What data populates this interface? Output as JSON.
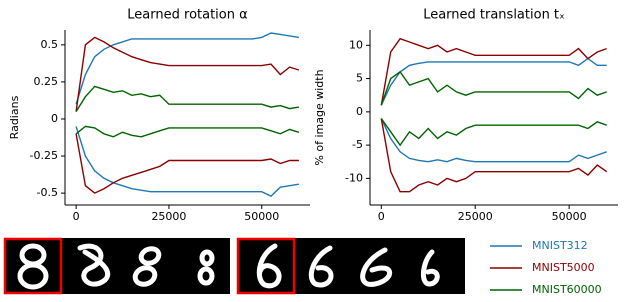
{
  "chart_data": [
    {
      "type": "line",
      "title": "Learned rotation α",
      "y_label": "Radians",
      "x": [
        0,
        2500,
        5000,
        7500,
        10000,
        12500,
        15000,
        17500,
        20000,
        22500,
        25000,
        27500,
        30000,
        32500,
        35000,
        37500,
        40000,
        42500,
        45000,
        47500,
        50000,
        52500,
        55000,
        57500,
        60000
      ],
      "xlim": [
        -3000,
        63000
      ],
      "xticks": [
        0,
        25000,
        50000
      ],
      "ylim": [
        -0.58,
        0.6
      ],
      "yticks": [
        0.5,
        0.25,
        0,
        -0.25,
        -0.5
      ],
      "series": [
        {
          "name": "MNIST312",
          "color": "#1f77b4",
          "upper": [
            0.1,
            0.3,
            0.42,
            0.47,
            0.5,
            0.52,
            0.54,
            0.54,
            0.54,
            0.54,
            0.54,
            0.54,
            0.54,
            0.54,
            0.54,
            0.54,
            0.54,
            0.54,
            0.54,
            0.54,
            0.55,
            0.58,
            0.57,
            0.56,
            0.55
          ],
          "lower": [
            -0.05,
            -0.25,
            -0.35,
            -0.4,
            -0.43,
            -0.45,
            -0.47,
            -0.48,
            -0.49,
            -0.49,
            -0.49,
            -0.49,
            -0.49,
            -0.49,
            -0.49,
            -0.49,
            -0.49,
            -0.49,
            -0.49,
            -0.49,
            -0.49,
            -0.52,
            -0.46,
            -0.45,
            -0.44
          ]
        },
        {
          "name": "MNIST5000",
          "color": "#8b0000",
          "upper": [
            0.05,
            0.5,
            0.55,
            0.52,
            0.48,
            0.45,
            0.42,
            0.4,
            0.38,
            0.37,
            0.36,
            0.36,
            0.36,
            0.36,
            0.36,
            0.36,
            0.36,
            0.36,
            0.36,
            0.36,
            0.36,
            0.37,
            0.3,
            0.35,
            0.33
          ],
          "lower": [
            -0.1,
            -0.45,
            -0.5,
            -0.47,
            -0.43,
            -0.4,
            -0.38,
            -0.36,
            -0.34,
            -0.32,
            -0.28,
            -0.28,
            -0.28,
            -0.28,
            -0.28,
            -0.28,
            -0.28,
            -0.28,
            -0.28,
            -0.28,
            -0.28,
            -0.27,
            -0.3,
            -0.28,
            -0.28
          ]
        },
        {
          "name": "MNIST60000",
          "color": "#006400",
          "upper": [
            0.05,
            0.15,
            0.22,
            0.2,
            0.18,
            0.19,
            0.16,
            0.17,
            0.15,
            0.16,
            0.1,
            0.1,
            0.1,
            0.1,
            0.1,
            0.1,
            0.1,
            0.1,
            0.1,
            0.1,
            0.1,
            0.08,
            0.09,
            0.07,
            0.08
          ],
          "lower": [
            -0.1,
            -0.05,
            -0.06,
            -0.1,
            -0.12,
            -0.09,
            -0.11,
            -0.12,
            -0.1,
            -0.08,
            -0.06,
            -0.06,
            -0.06,
            -0.06,
            -0.06,
            -0.06,
            -0.06,
            -0.06,
            -0.06,
            -0.06,
            -0.06,
            -0.08,
            -0.1,
            -0.07,
            -0.09
          ]
        }
      ]
    },
    {
      "type": "line",
      "title": "Learned translation tₓ",
      "y_label": "% of image width",
      "x": [
        0,
        2500,
        5000,
        7500,
        10000,
        12500,
        15000,
        17500,
        20000,
        22500,
        25000,
        27500,
        30000,
        32500,
        35000,
        37500,
        40000,
        42500,
        45000,
        47500,
        50000,
        52500,
        55000,
        57500,
        60000
      ],
      "xlim": [
        -3000,
        63000
      ],
      "xticks": [
        0,
        25000,
        50000
      ],
      "ylim": [
        -14,
        12.3
      ],
      "yticks": [
        10,
        5,
        0,
        -5,
        -10
      ],
      "series": [
        {
          "color": "#1f77b4",
          "upper": [
            1,
            4,
            6,
            7,
            7.3,
            7.5,
            7.5,
            7.5,
            7.5,
            7.5,
            7.5,
            7.5,
            7.5,
            7.5,
            7.5,
            7.5,
            7.5,
            7.5,
            7.5,
            7.5,
            7.5,
            7,
            8,
            7,
            7
          ],
          "lower": [
            -1,
            -4,
            -6,
            -7,
            -7.3,
            -7.5,
            -7.2,
            -7.5,
            -7,
            -7.3,
            -7.5,
            -7.5,
            -7.5,
            -7.5,
            -7.5,
            -7.5,
            -7.5,
            -7.5,
            -7.5,
            -7.5,
            -7.5,
            -6.5,
            -7,
            -6.5,
            -6
          ]
        },
        {
          "color": "#8b0000",
          "upper": [
            1,
            9,
            11,
            10.5,
            10,
            9.5,
            10,
            9,
            9.5,
            9,
            8.5,
            8.5,
            8.5,
            8.5,
            8.5,
            8.5,
            8.5,
            8.5,
            8.5,
            8.5,
            8.5,
            9.5,
            8,
            9,
            9.5
          ],
          "lower": [
            -1,
            -9,
            -12,
            -12,
            -11,
            -10.5,
            -11,
            -10,
            -10.5,
            -10,
            -9,
            -9,
            -9,
            -9,
            -9,
            -9,
            -9,
            -9,
            -9,
            -9,
            -9,
            -8.5,
            -9.5,
            -8,
            -9
          ]
        },
        {
          "color": "#006400",
          "upper": [
            1,
            5,
            6,
            4,
            4.5,
            5,
            3,
            4,
            3,
            2.5,
            3,
            3,
            3,
            3,
            3,
            3,
            3,
            3,
            3,
            3,
            3,
            2,
            3.5,
            2.5,
            3
          ],
          "lower": [
            -1,
            -3,
            -5,
            -3,
            -4,
            -2.5,
            -4,
            -3,
            -3.5,
            -2.5,
            -2,
            -2,
            -2,
            -2,
            -2,
            -2,
            -2,
            -2,
            -2,
            -2,
            -2,
            -2,
            -2.5,
            -1.5,
            -2
          ]
        }
      ]
    }
  ]
}
